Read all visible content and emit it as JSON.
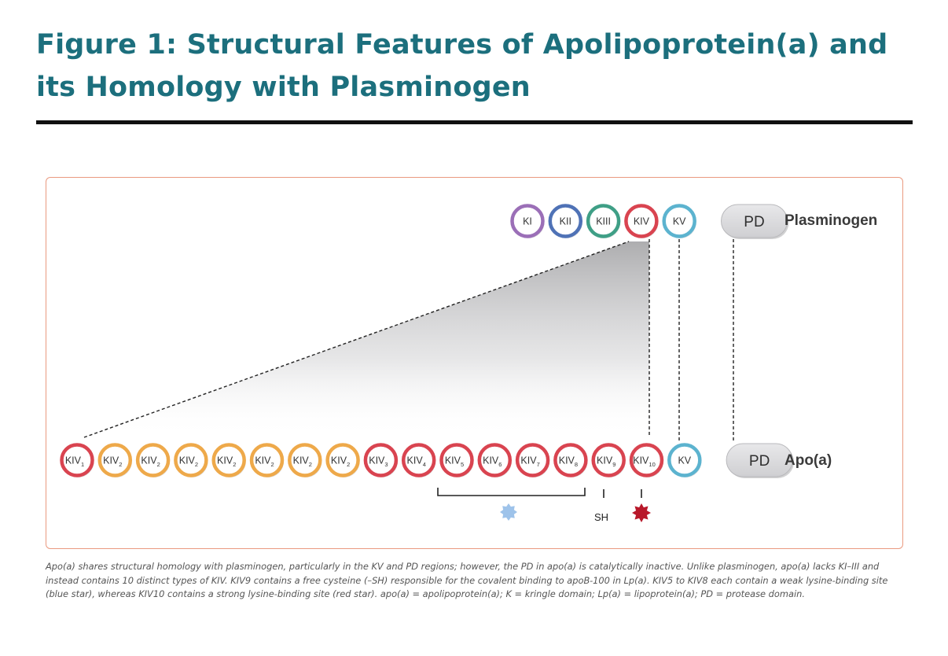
{
  "title": "Figure 1: Structural Features of Apolipoprotein(a) and its Homology with Plasminogen",
  "rows": {
    "plasminogen": {
      "label": "Plasminogen",
      "domains": [
        {
          "text": "KI",
          "sub": "",
          "color": "#9b6fb7"
        },
        {
          "text": "KII",
          "sub": "",
          "color": "#4f72b6"
        },
        {
          "text": "KIII",
          "sub": "",
          "color": "#3f9f86"
        },
        {
          "text": "KIV",
          "sub": "",
          "color": "#d94450"
        },
        {
          "text": "KV",
          "sub": "",
          "color": "#5cb3cf"
        },
        {
          "text": "PD",
          "sub": "",
          "color": "#c6c6c8",
          "pill": true
        }
      ]
    },
    "apoa": {
      "label": "Apo(a)",
      "domains": [
        {
          "text": "KIV",
          "sub": "1",
          "color": "#d94450"
        },
        {
          "text": "KIV",
          "sub": "2",
          "color": "#eea94a"
        },
        {
          "text": "KIV",
          "sub": "2",
          "color": "#eea94a"
        },
        {
          "text": "KIV",
          "sub": "2",
          "color": "#eea94a"
        },
        {
          "text": "KIV",
          "sub": "2",
          "color": "#eea94a"
        },
        {
          "text": "KIV",
          "sub": "2",
          "color": "#eea94a"
        },
        {
          "text": "KIV",
          "sub": "2",
          "color": "#eea94a"
        },
        {
          "text": "KIV",
          "sub": "2",
          "color": "#eea94a"
        },
        {
          "text": "KIV",
          "sub": "3",
          "color": "#d94450"
        },
        {
          "text": "KIV",
          "sub": "4",
          "color": "#d94450"
        },
        {
          "text": "KIV",
          "sub": "5",
          "color": "#d94450"
        },
        {
          "text": "KIV",
          "sub": "6",
          "color": "#d94450"
        },
        {
          "text": "KIV",
          "sub": "7",
          "color": "#d94450"
        },
        {
          "text": "KIV",
          "sub": "8",
          "color": "#d94450"
        },
        {
          "text": "KIV",
          "sub": "9",
          "color": "#d94450"
        },
        {
          "text": "KIV",
          "sub": "10",
          "color": "#d94450"
        },
        {
          "text": "KV",
          "sub": "",
          "color": "#5cb3cf"
        },
        {
          "text": "PD",
          "sub": "",
          "color": "#c6c6c8",
          "pill": true
        }
      ]
    }
  },
  "annotations": {
    "sh_label": "SH",
    "weak_site_color": "#9ec3ea",
    "strong_site_color": "#b8182a"
  },
  "caption": "Apo(a) shares structural homology with plasminogen, particularly in the KV and PD regions; however, the PD in apo(a) is catalytically inactive. Unlike plasminogen, apo(a) lacks KI–III and instead contains 10 distinct types of KIV. KIV9 contains a free cysteine (–SH) responsible for the covalent binding to apoB-100 in Lp(a). KIV5 to KIV8 each contain a weak lysine-binding site (blue star), whereas KIV10 contains a strong lysine-binding site (red star). apo(a) = apolipoprotein(a); K = kringle domain; Lp(a) = lipoprotein(a); PD = protease domain."
}
